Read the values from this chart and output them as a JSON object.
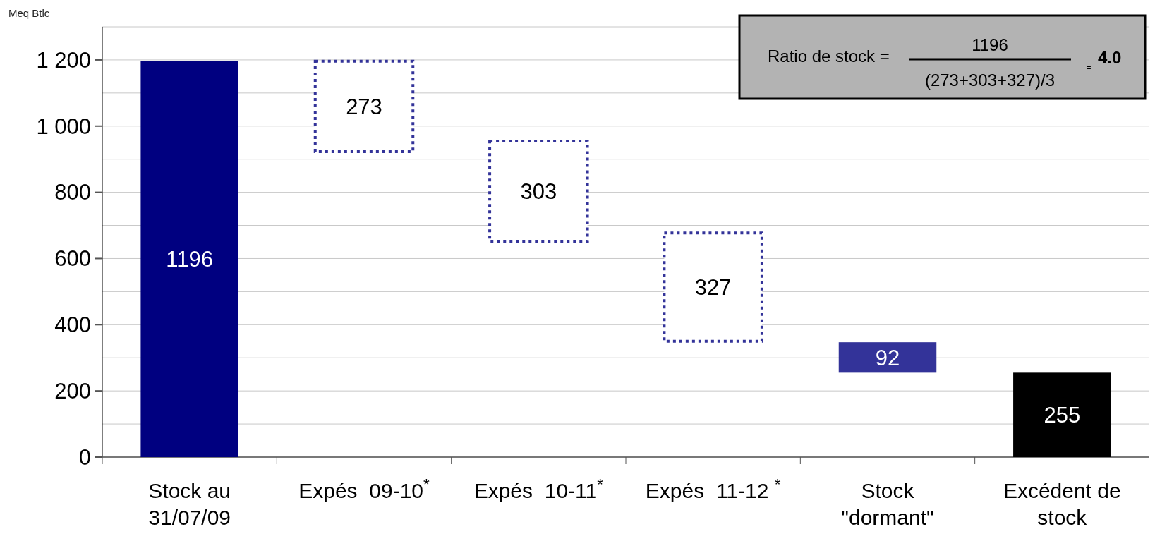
{
  "chart_data": {
    "type": "bar",
    "ylabel": "Meq Btlc",
    "categories": [
      "Stock au 31/07/09",
      "Expés  09-10$^{*}$",
      "Expés  10-11$^{*}$",
      "Expés  11-12 $^{*}$",
      "Stock \"dormant\"",
      "Excédent de stock"
    ],
    "base": [
      0,
      923,
      652,
      350,
      255,
      0
    ],
    "values": [
      1196,
      273,
      303,
      327,
      92,
      255
    ],
    "colors": [
      "#000080",
      "#333399",
      "#333399",
      "#333399",
      "#333399",
      "#000000"
    ],
    "line_style": [
      "solid",
      "dotted",
      "dotted",
      "dotted",
      "solid",
      "solid"
    ],
    "ylim": [
      0,
      1300
    ],
    "yticks": [
      0,
      {
        "value": 100,
        "label": null
      },
      200,
      {
        "value": 300,
        "label": null
      },
      400,
      {
        "value": 500,
        "label": null
      },
      600,
      {
        "value": 700,
        "label": null
      },
      800,
      {
        "value": 900,
        "label": null
      },
      {
        "value": 1000,
        "label": "1 000"
      },
      {
        "value": 1100,
        "label": null
      },
      {
        "value": 1200,
        "label": "1 200"
      },
      {
        "value": 1300,
        "label": null
      }
    ],
    "grid": "y",
    "data_labels": true,
    "annotations": [
      "Ratio de stock =",
      "1196",
      "(273+303+327)/3",
      "=",
      "4.0"
    ]
  }
}
